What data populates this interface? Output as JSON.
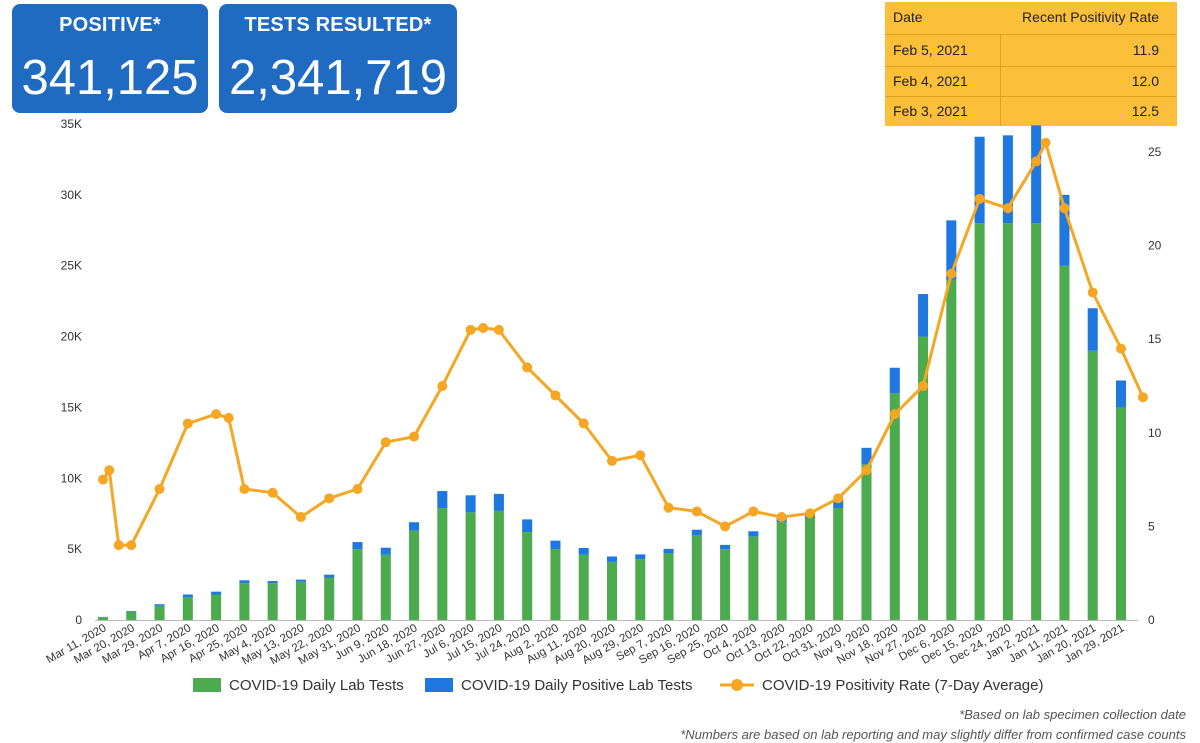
{
  "kpis": {
    "positive": {
      "label": "POSITIVE*",
      "value": "341,125"
    },
    "tests": {
      "label": "TESTS RESULTED*",
      "value": "2,341,719"
    }
  },
  "rate_table": {
    "headers": [
      "Date",
      "Recent Positivity Rate"
    ],
    "rows": [
      {
        "date": "Feb 5, 2021",
        "rate": "11.9"
      },
      {
        "date": "Feb 4, 2021",
        "rate": "12.0"
      },
      {
        "date": "Feb 3, 2021",
        "rate": "12.5"
      }
    ]
  },
  "notes": [
    "*Based on lab specimen collection date",
    "*Numbers are based on lab reporting and may slightly differ from confirmed case counts"
  ],
  "colors": {
    "tests": "#4caa4f",
    "positive": "#1f77e0",
    "rate": "#f5a623",
    "kpi": "#1f6bc2",
    "table": "#fbbf3a"
  },
  "chart_data": {
    "type": "bar+line",
    "x_tick_labels": [
      "Mar 11, 2020",
      "Mar 20, 2020",
      "Mar 29, 2020",
      "Apr 7, 2020",
      "Apr 16, 2020",
      "Apr 25, 2020",
      "May 4, 2020",
      "May 13, 2020",
      "May 22, 2020",
      "May 31, 2020",
      "Jun 9, 2020",
      "Jun 18, 2020",
      "Jun 27, 2020",
      "Jul 6, 2020",
      "Jul 15, 2020",
      "Jul 24, 2020",
      "Aug 2, 2020",
      "Aug 11, 2020",
      "Aug 20, 2020",
      "Aug 29, 2020",
      "Sep 7, 2020",
      "Sep 16, 2020",
      "Sep 25, 2020",
      "Oct 4, 2020",
      "Oct 13, 2020",
      "Oct 22, 2020",
      "Oct 31, 2020",
      "Nov 9, 2020",
      "Nov 18, 2020",
      "Nov 27, 2020",
      "Dec 6, 2020",
      "Dec 15, 2020",
      "Dec 24, 2020",
      "Jan 2, 2021",
      "Jan 11, 2021",
      "Jan 20, 2021",
      "Jan 29, 2021"
    ],
    "y_left": {
      "ticks": [
        "0",
        "5K",
        "10K",
        "15K",
        "20K",
        "25K",
        "30K",
        "35K"
      ],
      "ylim": [
        0,
        35000
      ]
    },
    "y_right": {
      "ticks": [
        "0",
        "5",
        "10",
        "15",
        "20",
        "25"
      ],
      "ylim": [
        0,
        26.5
      ]
    },
    "legend": [
      "COVID-19 Daily Lab Tests",
      "COVID-19 Daily Positive Lab Tests",
      "COVID-19 Positivity Rate (7-Day Average)"
    ],
    "legend_position": "bottom",
    "series": [
      {
        "name": "COVID-19 Daily Lab Tests",
        "kind": "bar",
        "x": [
          "Mar 11, 2020",
          "Mar 20, 2020",
          "Mar 29, 2020",
          "Apr 7, 2020",
          "Apr 16, 2020",
          "Apr 25, 2020",
          "May 4, 2020",
          "May 13, 2020",
          "May 22, 2020",
          "May 31, 2020",
          "Jun 9, 2020",
          "Jun 18, 2020",
          "Jun 27, 2020",
          "Jul 6, 2020",
          "Jul 15, 2020",
          "Jul 24, 2020",
          "Aug 2, 2020",
          "Aug 11, 2020",
          "Aug 20, 2020",
          "Aug 29, 2020",
          "Sep 7, 2020",
          "Sep 16, 2020",
          "Sep 25, 2020",
          "Oct 4, 2020",
          "Oct 13, 2020",
          "Oct 22, 2020",
          "Oct 31, 2020",
          "Nov 9, 2020",
          "Nov 18, 2020",
          "Nov 27, 2020",
          "Dec 6, 2020",
          "Dec 15, 2020",
          "Dec 24, 2020",
          "Jan 2, 2021",
          "Jan 11, 2021",
          "Jan 20, 2021",
          "Jan 29, 2021"
        ],
        "values": [
          200,
          600,
          1000,
          1600,
          1800,
          2600,
          2600,
          2700,
          3000,
          5000,
          4600,
          6300,
          7900,
          7600,
          7700,
          6200,
          5000,
          4600,
          4100,
          4300,
          4700,
          6000,
          5000,
          5900,
          6900,
          7200,
          7900,
          11000,
          16000,
          20000,
          24000,
          28000,
          28000,
          28000,
          25000,
          19000,
          15000
        ]
      },
      {
        "name": "COVID-19 Daily Positive Lab Tests",
        "kind": "bar",
        "x": [
          "Mar 11, 2020",
          "Mar 20, 2020",
          "Mar 29, 2020",
          "Apr 7, 2020",
          "Apr 16, 2020",
          "Apr 25, 2020",
          "May 4, 2020",
          "May 13, 2020",
          "May 22, 2020",
          "May 31, 2020",
          "Jun 9, 2020",
          "Jun 18, 2020",
          "Jun 27, 2020",
          "Jul 6, 2020",
          "Jul 15, 2020",
          "Jul 24, 2020",
          "Aug 2, 2020",
          "Aug 11, 2020",
          "Aug 20, 2020",
          "Aug 29, 2020",
          "Sep 7, 2020",
          "Sep 16, 2020",
          "Sep 25, 2020",
          "Oct 4, 2020",
          "Oct 13, 2020",
          "Oct 22, 2020",
          "Oct 31, 2020",
          "Nov 9, 2020",
          "Nov 18, 2020",
          "Nov 27, 2020",
          "Dec 6, 2020",
          "Dec 15, 2020",
          "Dec 24, 2020",
          "Jan 2, 2021",
          "Jan 11, 2021",
          "Jan 20, 2021",
          "Jan 29, 2021"
        ],
        "values": [
          20,
          30,
          110,
          200,
          200,
          200,
          150,
          150,
          200,
          500,
          500,
          600,
          1200,
          1200,
          1200,
          900,
          600,
          480,
          380,
          330,
          320,
          370,
          300,
          360,
          410,
          420,
          620,
          1150,
          1800,
          3000,
          4200,
          6100,
          6200,
          6900,
          5000,
          3000,
          1900
        ]
      },
      {
        "name": "COVID-19 Positivity Rate (7-Day Average)",
        "kind": "line",
        "x": [
          "Mar 11, 2020",
          "Mar 13, 2020",
          "Mar 16, 2020",
          "Mar 20, 2020",
          "Mar 29, 2020",
          "Apr 7, 2020",
          "Apr 16, 2020",
          "Apr 20, 2020",
          "Apr 25, 2020",
          "May 4, 2020",
          "May 13, 2020",
          "May 22, 2020",
          "May 31, 2020",
          "Jun 9, 2020",
          "Jun 18, 2020",
          "Jun 27, 2020",
          "Jul 6, 2020",
          "Jul 10, 2020",
          "Jul 15, 2020",
          "Jul 24, 2020",
          "Aug 2, 2020",
          "Aug 11, 2020",
          "Aug 20, 2020",
          "Aug 29, 2020",
          "Sep 7, 2020",
          "Sep 16, 2020",
          "Sep 25, 2020",
          "Oct 4, 2020",
          "Oct 13, 2020",
          "Oct 22, 2020",
          "Oct 31, 2020",
          "Nov 9, 2020",
          "Nov 18, 2020",
          "Nov 27, 2020",
          "Dec 6, 2020",
          "Dec 15, 2020",
          "Dec 24, 2020",
          "Jan 2, 2021",
          "Jan 5, 2021",
          "Jan 11, 2021",
          "Jan 20, 2021",
          "Jan 29, 2021",
          "Feb 5, 2021"
        ],
        "values": [
          7.5,
          8.0,
          4.0,
          4.0,
          7.0,
          10.5,
          11.0,
          10.8,
          7.0,
          6.8,
          5.5,
          6.5,
          7.0,
          9.5,
          9.8,
          12.5,
          15.5,
          15.6,
          15.5,
          13.5,
          12.0,
          10.5,
          8.5,
          8.8,
          6.0,
          5.8,
          5.0,
          5.8,
          5.5,
          5.7,
          6.5,
          8.0,
          11.0,
          12.5,
          18.5,
          22.5,
          22.0,
          24.5,
          25.5,
          22.0,
          17.5,
          14.5,
          11.9
        ]
      }
    ]
  }
}
